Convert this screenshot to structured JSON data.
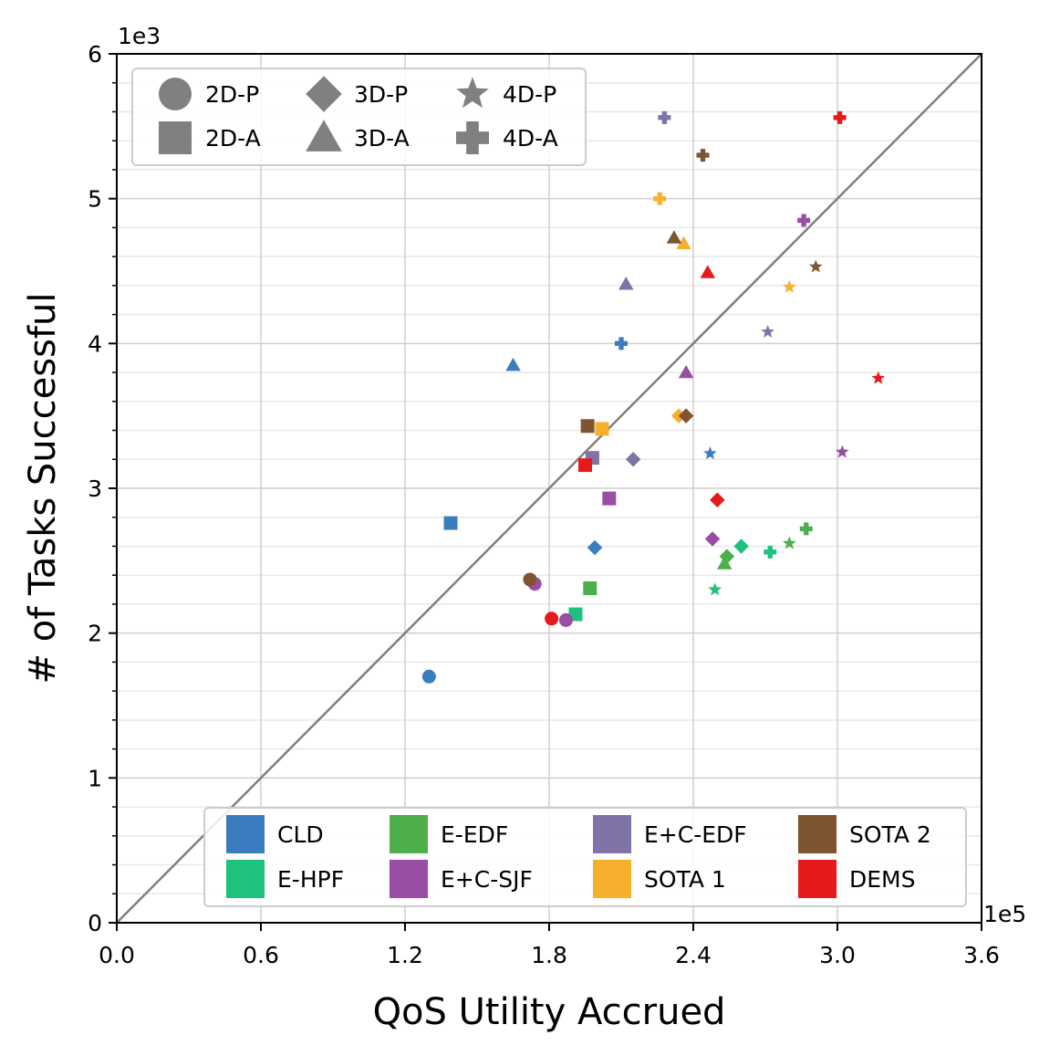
{
  "chart_data": {
    "type": "scatter",
    "xlabel": "QoS Utility Accrued",
    "ylabel": "# of Tasks Successful",
    "x_multiplier": "1e5",
    "y_multiplier": "1e3",
    "xlim": [
      0,
      3.6
    ],
    "ylim": [
      0,
      6
    ],
    "x_ticks": [
      "0.0",
      "0.6",
      "1.2",
      "1.8",
      "2.4",
      "3.0",
      "3.6"
    ],
    "y_ticks": [
      "0",
      "1",
      "2",
      "3",
      "4",
      "5",
      "6"
    ],
    "reference_line": {
      "from": [
        0,
        0
      ],
      "to": [
        3.6,
        6
      ],
      "color": "#7f7f7f"
    },
    "shape_legend": [
      {
        "label": "2D-P",
        "shape": "circle"
      },
      {
        "label": "2D-A",
        "shape": "square"
      },
      {
        "label": "3D-P",
        "shape": "diamond"
      },
      {
        "label": "3D-A",
        "shape": "triangle"
      },
      {
        "label": "4D-P",
        "shape": "star"
      },
      {
        "label": "4D-A",
        "shape": "plus"
      }
    ],
    "series": [
      {
        "name": "CLD",
        "color": "#3a7dbf",
        "points": [
          {
            "shape": "circle",
            "x": 1.3,
            "y": 1.7
          },
          {
            "shape": "square",
            "x": 1.39,
            "y": 2.76
          },
          {
            "shape": "diamond",
            "x": 1.99,
            "y": 2.59
          },
          {
            "shape": "triangle",
            "x": 1.65,
            "y": 3.85
          },
          {
            "shape": "star",
            "x": 2.47,
            "y": 3.24
          },
          {
            "shape": "plus",
            "x": 2.1,
            "y": 4.0
          }
        ]
      },
      {
        "name": "E-HPF",
        "color": "#1ec27c",
        "points": [
          {
            "shape": "square",
            "x": 1.91,
            "y": 2.13
          },
          {
            "shape": "diamond",
            "x": 2.6,
            "y": 2.6
          },
          {
            "shape": "star",
            "x": 2.49,
            "y": 2.3
          },
          {
            "shape": "plus",
            "x": 2.72,
            "y": 2.56
          }
        ]
      },
      {
        "name": "E-EDF",
        "color": "#4caf4c",
        "points": [
          {
            "shape": "square",
            "x": 1.97,
            "y": 2.31
          },
          {
            "shape": "diamond",
            "x": 2.54,
            "y": 2.53
          },
          {
            "shape": "triangle",
            "x": 2.53,
            "y": 2.48
          },
          {
            "shape": "star",
            "x": 2.8,
            "y": 2.62
          },
          {
            "shape": "plus",
            "x": 2.87,
            "y": 2.72
          }
        ]
      },
      {
        "name": "E+C-SJF",
        "color": "#984ea3",
        "points": [
          {
            "shape": "circle",
            "x": 1.74,
            "y": 2.34
          },
          {
            "shape": "circle",
            "x": 1.87,
            "y": 2.09
          },
          {
            "shape": "square",
            "x": 2.05,
            "y": 2.93
          },
          {
            "shape": "diamond",
            "x": 2.48,
            "y": 2.65
          },
          {
            "shape": "triangle",
            "x": 2.37,
            "y": 3.8
          },
          {
            "shape": "star",
            "x": 3.02,
            "y": 3.25
          },
          {
            "shape": "plus",
            "x": 2.86,
            "y": 4.85
          }
        ]
      },
      {
        "name": "E+C-EDF",
        "color": "#8073a6",
        "points": [
          {
            "shape": "square",
            "x": 1.98,
            "y": 3.21
          },
          {
            "shape": "diamond",
            "x": 2.15,
            "y": 3.2
          },
          {
            "shape": "triangle",
            "x": 2.12,
            "y": 4.41
          },
          {
            "shape": "star",
            "x": 2.71,
            "y": 4.08
          },
          {
            "shape": "plus",
            "x": 2.28,
            "y": 5.56
          }
        ]
      },
      {
        "name": "SOTA 1",
        "color": "#f7b02e",
        "points": [
          {
            "shape": "square",
            "x": 2.02,
            "y": 3.41
          },
          {
            "shape": "diamond",
            "x": 2.34,
            "y": 3.5
          },
          {
            "shape": "triangle",
            "x": 2.36,
            "y": 4.69
          },
          {
            "shape": "star",
            "x": 2.8,
            "y": 4.39
          },
          {
            "shape": "plus",
            "x": 2.26,
            "y": 5.0
          }
        ]
      },
      {
        "name": "SOTA 2",
        "color": "#7f5430",
        "points": [
          {
            "shape": "circle",
            "x": 1.72,
            "y": 2.37
          },
          {
            "shape": "square",
            "x": 1.96,
            "y": 3.43
          },
          {
            "shape": "diamond",
            "x": 2.37,
            "y": 3.5
          },
          {
            "shape": "triangle",
            "x": 2.32,
            "y": 4.73
          },
          {
            "shape": "star",
            "x": 2.91,
            "y": 4.53
          },
          {
            "shape": "plus",
            "x": 2.44,
            "y": 5.3
          }
        ]
      },
      {
        "name": "DEMS",
        "color": "#e41a1c",
        "points": [
          {
            "shape": "circle",
            "x": 1.81,
            "y": 2.1
          },
          {
            "shape": "square",
            "x": 1.95,
            "y": 3.16
          },
          {
            "shape": "diamond",
            "x": 2.5,
            "y": 2.92
          },
          {
            "shape": "triangle",
            "x": 2.46,
            "y": 4.49
          },
          {
            "shape": "star",
            "x": 3.17,
            "y": 3.76
          },
          {
            "shape": "plus",
            "x": 3.01,
            "y": 5.56
          }
        ]
      }
    ],
    "color_legend_order": [
      "CLD",
      "E-HPF",
      "E-EDF",
      "E+C-SJF",
      "E+C-EDF",
      "SOTA 1",
      "SOTA 2",
      "DEMS"
    ]
  }
}
